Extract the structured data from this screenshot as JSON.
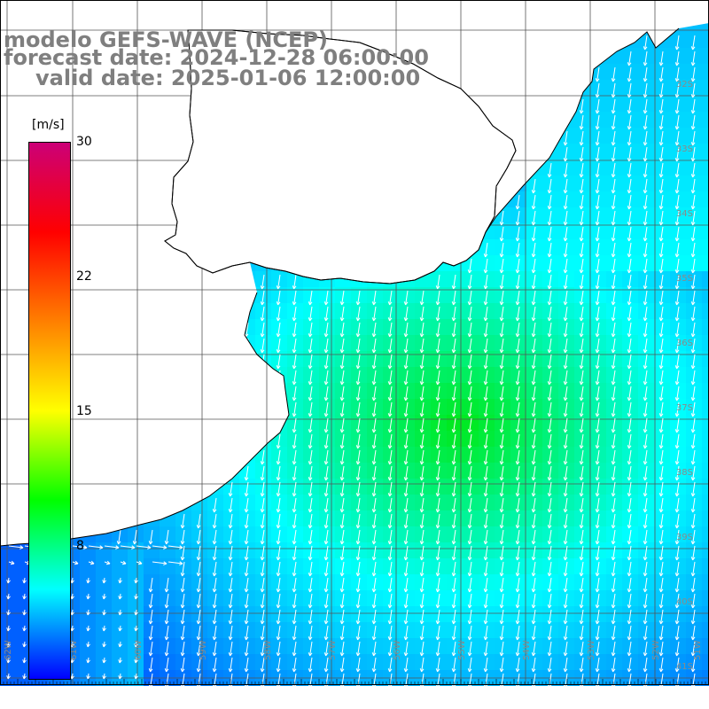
{
  "title": {
    "line1": "modelo GEFS-WAVE (NCEP)",
    "line2": "forecast date: 2024-12-28 06:00:00",
    "line3": "valid date: 2025-01-06 12:00:00"
  },
  "colorbar": {
    "units": "[m/s]",
    "ticks": [
      "30",
      "22",
      "15",
      "8"
    ],
    "range": [
      0,
      30
    ],
    "colors": [
      "#0000ff",
      "#00ffff",
      "#00ff00",
      "#ffff00",
      "#ff7f00",
      "#ff0000",
      "#cc0077"
    ]
  },
  "map": {
    "variable": "wind speed and direction",
    "lat_labels": [
      "32S",
      "33S",
      "34S",
      "35S",
      "36S",
      "37S",
      "38S",
      "39S",
      "40S",
      "41S"
    ],
    "lon_labels": [
      "62W",
      "61W",
      "60W",
      "59W",
      "58W",
      "57W",
      "56W",
      "55W",
      "54W",
      "53W",
      "52W",
      "51W"
    ],
    "lat_range": [
      -41.5,
      -32.5
    ],
    "lon_range": [
      -62,
      -51
    ],
    "land_color": "#ffffff",
    "grid_color": "#555555",
    "prevailing_wind": "from north, toward south"
  }
}
